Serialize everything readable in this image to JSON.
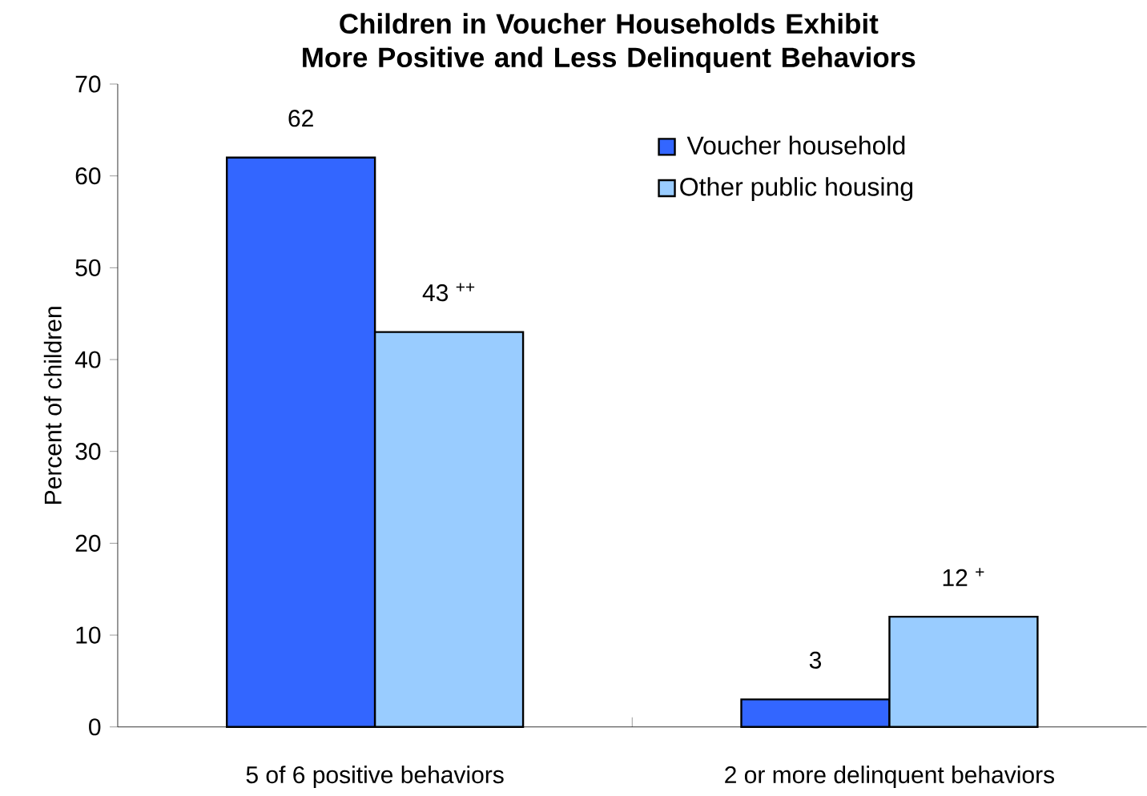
{
  "chart_data": {
    "type": "bar",
    "title": "Children in Voucher Households Exhibit More Positive and Less Delinquent Behaviors",
    "ylabel": "Percent of children",
    "categories": [
      "5 of 6 positive behaviors",
      "2 or more delinquent behaviors"
    ],
    "series": [
      {
        "name": "Voucher household",
        "color": "#3366ff",
        "values": [
          62,
          3
        ],
        "value_labels": [
          "62",
          "3"
        ]
      },
      {
        "name": "Other public housing",
        "color": "#99ccff",
        "values": [
          43,
          12
        ],
        "value_labels": [
          "43  $^{++}$",
          "12  $^{+}$"
        ]
      }
    ],
    "ylim": [
      0,
      70
    ],
    "yticks": [
      0,
      10,
      20,
      30,
      40,
      50,
      60,
      70
    ],
    "grid": false,
    "legend": "top right"
  }
}
